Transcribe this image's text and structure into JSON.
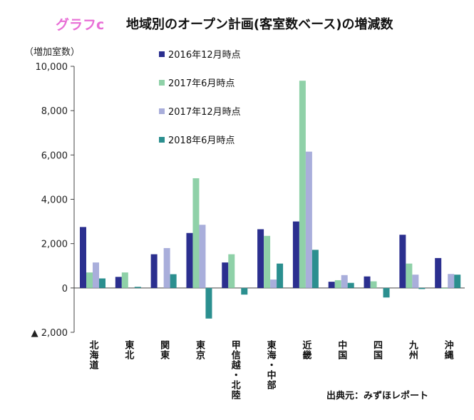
{
  "figure_label": "グラフc",
  "source_note": "出典元：みずほレポート",
  "chart_data": {
    "type": "bar",
    "title": "地域別のオープン計画(客室数ベース)の増減数",
    "ylabel": "（増加室数）",
    "ylim": [
      -2000,
      10000
    ],
    "yticks": [
      10000,
      8000,
      6000,
      4000,
      2000,
      0,
      -2000
    ],
    "ytick_labels": [
      "10,000",
      "8,000",
      "6,000",
      "4,000",
      "2,000",
      "0",
      "▲ 2,000"
    ],
    "grid": false,
    "legend_position": "top-center",
    "categories": [
      "北海道",
      "東北",
      "関東",
      "東京",
      "甲信越・北陸",
      "東海・中部",
      "近畿",
      "中国",
      "四国",
      "九州",
      "沖縄"
    ],
    "series": [
      {
        "name": "2016年12月時点",
        "color": "#2b2f8f",
        "values": [
          2750,
          500,
          1520,
          2480,
          1150,
          2650,
          3000,
          280,
          520,
          2400,
          1350
        ]
      },
      {
        "name": "2017年6月時点",
        "color": "#8fd1a8",
        "values": [
          700,
          700,
          0,
          4950,
          1520,
          2350,
          9350,
          350,
          300,
          1100,
          -20
        ]
      },
      {
        "name": "2017年12月時点",
        "color": "#a9aedb",
        "values": [
          1150,
          0,
          1800,
          2850,
          0,
          380,
          6150,
          580,
          0,
          600,
          630
        ]
      },
      {
        "name": "2018年6月時点",
        "color": "#2b8f8f",
        "values": [
          430,
          50,
          620,
          -1380,
          -300,
          1100,
          1720,
          230,
          -430,
          -50,
          600
        ]
      }
    ]
  }
}
